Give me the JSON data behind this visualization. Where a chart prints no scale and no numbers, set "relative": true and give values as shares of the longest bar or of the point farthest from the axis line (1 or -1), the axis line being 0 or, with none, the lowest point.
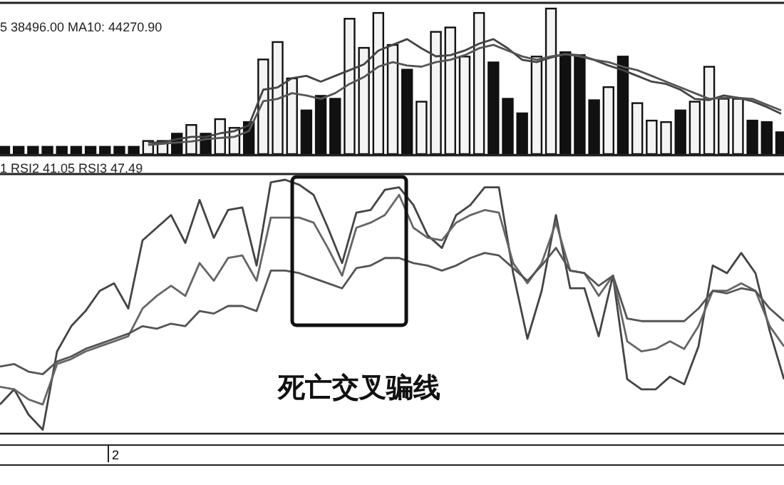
{
  "chart_data": [
    {
      "type": "bar",
      "relative": true,
      "annotations": [
        "5  38496.00  MA10: 44270.90"
      ],
      "categories": [
        null,
        null,
        null,
        null,
        null,
        null,
        null,
        null,
        null,
        null,
        null,
        null,
        null,
        null,
        null,
        null,
        null,
        null,
        null,
        null,
        null,
        null,
        null,
        null,
        null,
        null,
        null,
        null,
        null,
        null,
        null,
        null,
        null,
        null,
        null,
        null,
        null,
        null,
        null,
        null,
        null,
        null,
        null,
        null,
        null,
        null,
        null,
        null,
        null,
        null,
        null,
        null,
        null,
        null,
        null
      ],
      "values": [
        0.05,
        0.05,
        0.05,
        0.05,
        0.05,
        0.05,
        0.05,
        0.05,
        0.05,
        0.05,
        0.09,
        0.09,
        0.14,
        0.2,
        0.14,
        0.24,
        0.18,
        0.22,
        0.65,
        0.77,
        0.52,
        0.3,
        0.4,
        0.38,
        0.93,
        0.73,
        0.97,
        0.75,
        0.58,
        0.36,
        0.84,
        0.87,
        0.67,
        0.97,
        0.63,
        0.38,
        0.28,
        0.67,
        1.0,
        0.7,
        0.68,
        0.37,
        0.46,
        0.67,
        0.35,
        0.23,
        0.22,
        0.3,
        0.36,
        0.6,
        0.38,
        0.38,
        0.23,
        0.22,
        0.15
      ],
      "colors": [
        "#111111",
        "#111111",
        "#111111",
        "#111111",
        "#111111",
        "#111111",
        "#111111",
        "#111111",
        "#111111",
        "#111111",
        "#f4f4f4",
        "#f4f4f4",
        "#111111",
        "#f4f4f4",
        "#111111",
        "#f4f4f4",
        "#f4f4f4",
        "#111111",
        "#f4f4f4",
        "#f4f4f4",
        "#f4f4f4",
        "#111111",
        "#111111",
        "#111111",
        "#f4f4f4",
        "#f4f4f4",
        "#f4f4f4",
        "#f4f4f4",
        "#111111",
        "#f4f4f4",
        "#f4f4f4",
        "#f4f4f4",
        "#f4f4f4",
        "#f4f4f4",
        "#111111",
        "#111111",
        "#111111",
        "#f4f4f4",
        "#f4f4f4",
        "#111111",
        "#111111",
        "#111111",
        "#f4f4f4",
        "#111111",
        "#f4f4f4",
        "#f4f4f4",
        "#f4f4f4",
        "#111111",
        "#f4f4f4",
        "#f4f4f4",
        "#f4f4f4",
        "#f4f4f4",
        "#111111",
        "#111111",
        "#111111"
      ]
    },
    {
      "type": "line",
      "relative": true,
      "categories": [
        null,
        null,
        null,
        null,
        null,
        null,
        null,
        null,
        null,
        null,
        null,
        null,
        null,
        null,
        null,
        null,
        null,
        null,
        null,
        null,
        null,
        null,
        null,
        null,
        null,
        null,
        null,
        null,
        null,
        null,
        null,
        null,
        null,
        null,
        null,
        null,
        null,
        null,
        null,
        null,
        null,
        null,
        null,
        null,
        null
      ],
      "series": [
        {
          "color": "#444444",
          "values": [
            0.1,
            0.1,
            0.13,
            0.15,
            0.15,
            0.18,
            0.2,
            0.25,
            0.56,
            0.58,
            0.66,
            0.68,
            0.63,
            0.68,
            0.73,
            0.78,
            0.9,
            0.95,
            1.0,
            0.92,
            0.85,
            0.86,
            0.9,
            0.96,
            1.0,
            0.92,
            0.82,
            0.8,
            0.84,
            0.87,
            0.86,
            0.82,
            0.77,
            0.73,
            0.68,
            0.63,
            0.61,
            0.56,
            0.48,
            0.47,
            0.51,
            0.49,
            0.46,
            0.41,
            0.35
          ]
        },
        {
          "color": "#555555",
          "values": [
            0.08,
            0.09,
            0.1,
            0.11,
            0.13,
            0.14,
            0.15,
            0.2,
            0.46,
            0.48,
            0.53,
            0.51,
            0.48,
            0.53,
            0.61,
            0.67,
            0.76,
            0.8,
            0.77,
            0.76,
            0.8,
            0.82,
            0.86,
            0.92,
            0.95,
            0.9,
            0.85,
            0.82,
            0.85,
            0.87,
            0.85,
            0.82,
            0.8,
            0.76,
            0.73,
            0.68,
            0.63,
            0.58,
            0.53,
            0.48,
            0.49,
            0.49,
            0.48,
            0.43,
            0.38
          ]
        }
      ]
    },
    {
      "type": "line",
      "relative": true,
      "annotations": [
        "1 RSI2 41.05 RSI3 47.49",
        "死亡交叉骗线",
        "2"
      ],
      "categories": [
        null,
        null,
        null,
        null,
        null,
        null,
        null,
        null,
        null,
        null,
        null,
        null,
        null,
        null,
        null,
        null,
        null,
        null,
        null,
        null,
        null,
        null,
        null,
        null,
        null,
        null,
        null,
        null,
        null,
        null,
        null,
        null,
        null,
        null,
        null,
        null,
        null,
        null,
        null,
        null,
        null,
        null,
        null,
        null,
        null,
        null,
        null,
        null,
        null,
        null,
        null,
        null,
        null,
        null,
        null,
        null
      ],
      "series": [
        {
          "color": "#444444",
          "values": [
            0.11,
            0.17,
            0.07,
            0.01,
            0.32,
            0.42,
            0.48,
            0.56,
            0.59,
            0.49,
            0.76,
            0.81,
            0.86,
            0.75,
            0.92,
            0.77,
            0.88,
            0.89,
            0.66,
            0.99,
            1.0,
            0.98,
            0.94,
            0.81,
            0.67,
            0.87,
            0.88,
            0.96,
            0.97,
            0.9,
            0.78,
            0.73,
            0.86,
            0.9,
            0.97,
            0.97,
            0.63,
            0.37,
            0.56,
            0.86,
            0.57,
            0.57,
            0.38,
            0.62,
            0.21,
            0.17,
            0.17,
            0.22,
            0.19,
            0.34,
            0.66,
            0.63,
            0.71,
            0.63,
            0.4,
            0.21
          ]
        },
        {
          "color": "#666666",
          "values": [
            0.18,
            0.17,
            0.13,
            0.11,
            0.27,
            0.29,
            0.32,
            0.34,
            0.36,
            0.38,
            0.49,
            0.54,
            0.58,
            0.54,
            0.67,
            0.6,
            0.69,
            0.7,
            0.6,
            0.85,
            0.85,
            0.85,
            0.83,
            0.73,
            0.62,
            0.81,
            0.83,
            0.86,
            0.94,
            0.81,
            0.77,
            0.76,
            0.83,
            0.86,
            0.88,
            0.87,
            0.67,
            0.59,
            0.67,
            0.83,
            0.64,
            0.63,
            0.54,
            0.62,
            0.36,
            0.32,
            0.33,
            0.36,
            0.33,
            0.42,
            0.56,
            0.56,
            0.59,
            0.56,
            0.42,
            0.34
          ]
        },
        {
          "color": "#555555",
          "values": [
            0.26,
            0.27,
            0.24,
            0.23,
            0.28,
            0.3,
            0.33,
            0.35,
            0.37,
            0.39,
            0.42,
            0.41,
            0.43,
            0.42,
            0.48,
            0.47,
            0.5,
            0.5,
            0.48,
            0.64,
            0.64,
            0.63,
            0.61,
            0.59,
            0.57,
            0.65,
            0.66,
            0.69,
            0.69,
            0.67,
            0.66,
            0.64,
            0.66,
            0.69,
            0.71,
            0.7,
            0.65,
            0.6,
            0.66,
            0.73,
            0.64,
            0.63,
            0.58,
            0.62,
            0.45,
            0.44,
            0.44,
            0.44,
            0.44,
            0.49,
            0.56,
            0.55,
            0.57,
            0.56,
            0.49,
            0.44
          ]
        }
      ]
    }
  ]
}
